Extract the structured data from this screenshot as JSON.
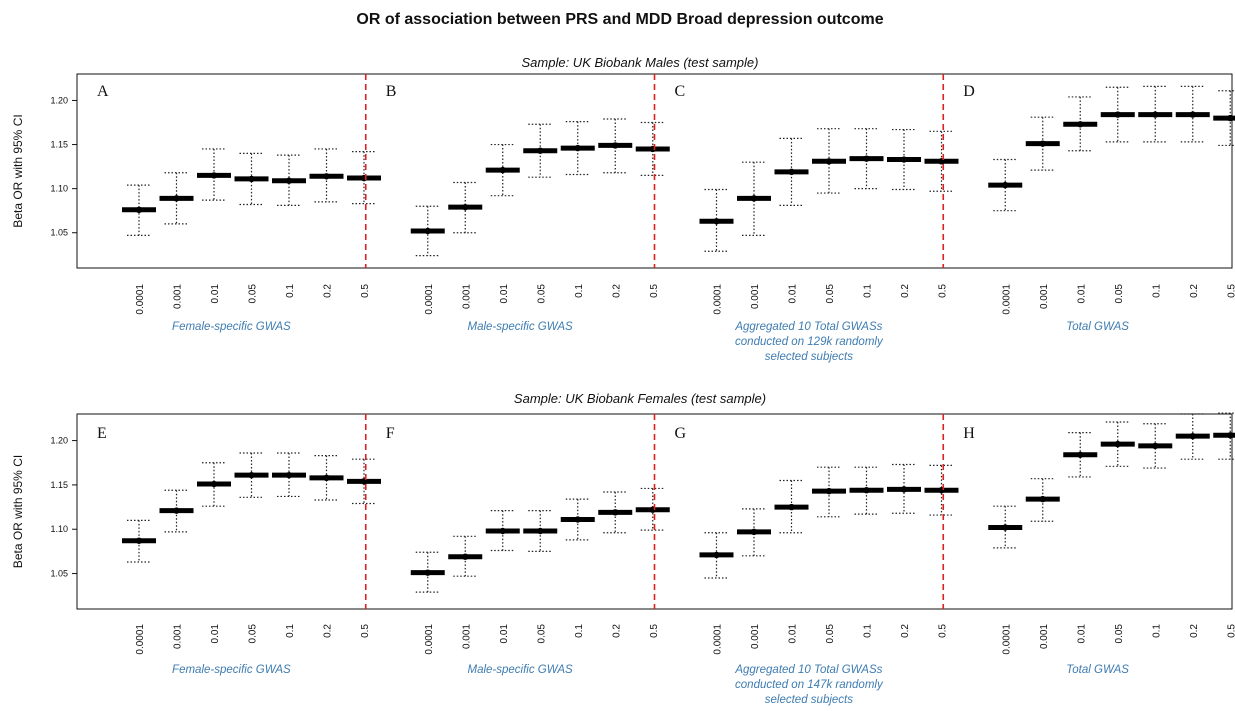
{
  "figure": {
    "title": "OR of association between PRS and MDD Broad depression outcome"
  },
  "chart_data": [
    {
      "type": "errorbar",
      "subtitle": "Sample: UK Biobank Males (test sample)",
      "ylabel": "Beta OR with 95% CI",
      "ylim": [
        1.01,
        1.23
      ],
      "yticks": [
        "1.05",
        "1.10",
        "1.15",
        "1.20"
      ],
      "xticks": [
        "0.0001",
        "0.001",
        "0.01",
        "0.05",
        "0.1",
        "0.2",
        "0.5"
      ],
      "divider_color": "#e02020",
      "groups": [
        {
          "letter": "A",
          "label": "Female-specific GWAS",
          "points": [
            {
              "or": 1.076,
              "lo": 1.047,
              "hi": 1.104
            },
            {
              "or": 1.089,
              "lo": 1.06,
              "hi": 1.118
            },
            {
              "or": 1.115,
              "lo": 1.087,
              "hi": 1.145
            },
            {
              "or": 1.111,
              "lo": 1.082,
              "hi": 1.14
            },
            {
              "or": 1.109,
              "lo": 1.081,
              "hi": 1.138
            },
            {
              "or": 1.114,
              "lo": 1.085,
              "hi": 1.145
            },
            {
              "or": 1.112,
              "lo": 1.083,
              "hi": 1.142
            }
          ]
        },
        {
          "letter": "B",
          "label": "Male-specific GWAS",
          "points": [
            {
              "or": 1.052,
              "lo": 1.024,
              "hi": 1.08
            },
            {
              "or": 1.079,
              "lo": 1.05,
              "hi": 1.107
            },
            {
              "or": 1.121,
              "lo": 1.092,
              "hi": 1.15
            },
            {
              "or": 1.143,
              "lo": 1.113,
              "hi": 1.173
            },
            {
              "or": 1.146,
              "lo": 1.116,
              "hi": 1.176
            },
            {
              "or": 1.149,
              "lo": 1.118,
              "hi": 1.179
            },
            {
              "or": 1.145,
              "lo": 1.115,
              "hi": 1.175
            }
          ]
        },
        {
          "letter": "C",
          "label": "Aggregated 10 Total GWASs conducted on 129k randomly selected subjects",
          "label_lines": [
            "Aggregated 10 Total GWASs",
            "conducted on 129k randomly",
            "selected subjects"
          ],
          "points": [
            {
              "or": 1.063,
              "lo": 1.029,
              "hi": 1.099
            },
            {
              "or": 1.089,
              "lo": 1.047,
              "hi": 1.13
            },
            {
              "or": 1.119,
              "lo": 1.081,
              "hi": 1.157
            },
            {
              "or": 1.131,
              "lo": 1.095,
              "hi": 1.168
            },
            {
              "or": 1.134,
              "lo": 1.1,
              "hi": 1.168
            },
            {
              "or": 1.133,
              "lo": 1.099,
              "hi": 1.167
            },
            {
              "or": 1.131,
              "lo": 1.097,
              "hi": 1.165
            }
          ]
        },
        {
          "letter": "D",
          "label": "Total GWAS",
          "points": [
            {
              "or": 1.104,
              "lo": 1.075,
              "hi": 1.133
            },
            {
              "or": 1.151,
              "lo": 1.121,
              "hi": 1.181
            },
            {
              "or": 1.173,
              "lo": 1.143,
              "hi": 1.204
            },
            {
              "or": 1.184,
              "lo": 1.153,
              "hi": 1.215
            },
            {
              "or": 1.184,
              "lo": 1.153,
              "hi": 1.216
            },
            {
              "or": 1.184,
              "lo": 1.153,
              "hi": 1.216
            },
            {
              "or": 1.18,
              "lo": 1.149,
              "hi": 1.211
            }
          ]
        }
      ]
    },
    {
      "type": "errorbar",
      "subtitle": "Sample: UK Biobank Females (test sample)",
      "ylabel": "Beta OR with 95% CI",
      "ylim": [
        1.01,
        1.23
      ],
      "yticks": [
        "1.05",
        "1.10",
        "1.15",
        "1.20"
      ],
      "xticks": [
        "0.0001",
        "0.001",
        "0.01",
        "0.05",
        "0.1",
        "0.2",
        "0.5"
      ],
      "divider_color": "#e02020",
      "groups": [
        {
          "letter": "E",
          "label": "Female-specific GWAS",
          "points": [
            {
              "or": 1.087,
              "lo": 1.063,
              "hi": 1.11
            },
            {
              "or": 1.121,
              "lo": 1.097,
              "hi": 1.144
            },
            {
              "or": 1.151,
              "lo": 1.126,
              "hi": 1.175
            },
            {
              "or": 1.161,
              "lo": 1.136,
              "hi": 1.186
            },
            {
              "or": 1.161,
              "lo": 1.137,
              "hi": 1.186
            },
            {
              "or": 1.158,
              "lo": 1.133,
              "hi": 1.183
            },
            {
              "or": 1.154,
              "lo": 1.129,
              "hi": 1.179
            }
          ]
        },
        {
          "letter": "F",
          "label": "Male-specific GWAS",
          "points": [
            {
              "or": 1.051,
              "lo": 1.029,
              "hi": 1.074
            },
            {
              "or": 1.069,
              "lo": 1.047,
              "hi": 1.092
            },
            {
              "or": 1.098,
              "lo": 1.076,
              "hi": 1.121
            },
            {
              "or": 1.098,
              "lo": 1.075,
              "hi": 1.121
            },
            {
              "or": 1.111,
              "lo": 1.088,
              "hi": 1.134
            },
            {
              "or": 1.119,
              "lo": 1.096,
              "hi": 1.142
            },
            {
              "or": 1.122,
              "lo": 1.099,
              "hi": 1.146
            }
          ]
        },
        {
          "letter": "G",
          "label": "Aggregated 10 Total GWASs conducted on 147k randomly selected subjects",
          "label_lines": [
            "Aggregated 10 Total GWASs",
            "conducted on 147k randomly",
            "selected subjects"
          ],
          "points": [
            {
              "or": 1.071,
              "lo": 1.045,
              "hi": 1.096
            },
            {
              "or": 1.097,
              "lo": 1.07,
              "hi": 1.123
            },
            {
              "or": 1.125,
              "lo": 1.096,
              "hi": 1.155
            },
            {
              "or": 1.143,
              "lo": 1.114,
              "hi": 1.17
            },
            {
              "or": 1.144,
              "lo": 1.117,
              "hi": 1.17
            },
            {
              "or": 1.145,
              "lo": 1.118,
              "hi": 1.173
            },
            {
              "or": 1.144,
              "lo": 1.116,
              "hi": 1.172
            }
          ]
        },
        {
          "letter": "H",
          "label": "Total GWAS",
          "points": [
            {
              "or": 1.102,
              "lo": 1.079,
              "hi": 1.126
            },
            {
              "or": 1.134,
              "lo": 1.109,
              "hi": 1.157
            },
            {
              "or": 1.184,
              "lo": 1.159,
              "hi": 1.209
            },
            {
              "or": 1.196,
              "lo": 1.171,
              "hi": 1.221
            },
            {
              "or": 1.194,
              "lo": 1.169,
              "hi": 1.219
            },
            {
              "or": 1.205,
              "lo": 1.179,
              "hi": 1.23
            },
            {
              "or": 1.206,
              "lo": 1.179,
              "hi": 1.231
            }
          ]
        }
      ]
    }
  ]
}
